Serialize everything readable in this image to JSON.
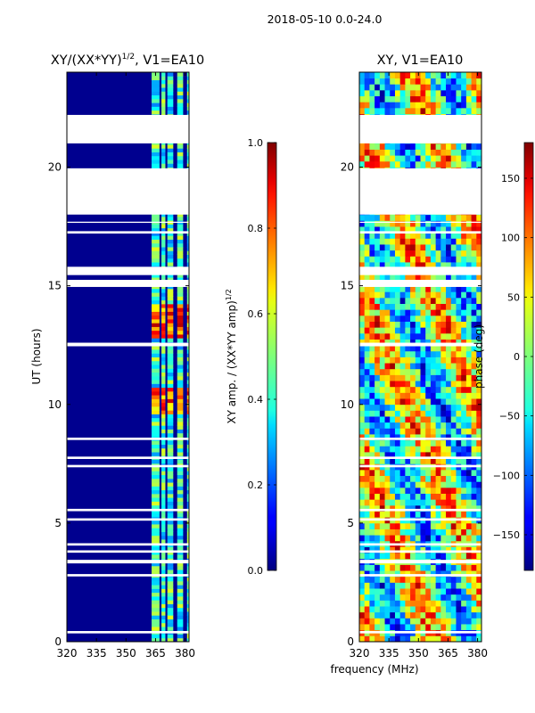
{
  "suptitle": "2018-05-10 0.0-24.0",
  "chart_data": [
    {
      "type": "heatmap",
      "title": "XY/(XX*YY)",
      "title_sup": "1/2",
      "title_suffix": ", V1=EA10",
      "xlabel": "",
      "ylabel": "UT (hours)",
      "xlim": [
        320,
        382
      ],
      "ylim": [
        0,
        24
      ],
      "xticks": [
        320,
        335,
        350,
        365,
        380
      ],
      "yticks": [
        0,
        5,
        10,
        15,
        20
      ],
      "colorbar": {
        "label": "XY amp. / (XX*YY amp)",
        "label_sup": "1/2",
        "min": 0.0,
        "max": 1.0,
        "ticks": [
          "0.0",
          "0.2",
          "0.4",
          "0.6",
          "0.8",
          "1.0"
        ],
        "tick_values": [
          0.0,
          0.2,
          0.4,
          0.6,
          0.8,
          1.0
        ]
      },
      "colormap": "jet",
      "description_values": {
        "background_band": [
          320,
          363
        ],
        "background_level": 0.05,
        "rfi_bands_mhz": [
          [
            363,
            367
          ],
          [
            368,
            370
          ],
          [
            371,
            374
          ],
          [
            376,
            379
          ],
          [
            381,
            382
          ]
        ],
        "high_amp_hours": [
          [
            12.8,
            14.2
          ],
          [
            9.6,
            10.6
          ]
        ]
      },
      "gap_hours": [
        [
          0.35,
          0.45
        ],
        [
          2.75,
          2.85
        ],
        [
          3.3,
          3.45
        ],
        [
          3.75,
          3.85
        ],
        [
          4.05,
          4.15
        ],
        [
          5.1,
          5.2
        ],
        [
          5.5,
          5.6
        ],
        [
          7.35,
          7.45
        ],
        [
          7.7,
          7.8
        ],
        [
          8.5,
          8.6
        ],
        [
          12.45,
          12.6
        ],
        [
          14.95,
          15.25
        ],
        [
          15.45,
          15.8
        ],
        [
          17.2,
          17.3
        ],
        [
          17.65,
          17.7
        ],
        [
          18.0,
          19.95
        ],
        [
          21.0,
          22.2
        ]
      ]
    },
    {
      "type": "heatmap",
      "title": "XY, V1=EA10",
      "xlabel": "frequency (MHz)",
      "ylabel": "",
      "xlim": [
        320,
        382
      ],
      "ylim": [
        0,
        24
      ],
      "xticks": [
        320,
        335,
        350,
        365,
        380
      ],
      "yticks": [
        0,
        5,
        10,
        15,
        20
      ],
      "colorbar": {
        "label": "phase (deg)",
        "min": -180,
        "max": 180,
        "ticks": [
          "−150",
          "−100",
          "−50",
          "0",
          "50",
          "100",
          "150"
        ],
        "tick_values": [
          -150,
          -100,
          -50,
          0,
          50,
          100,
          150
        ]
      },
      "colormap": "jet",
      "gap_hours": [
        [
          0.35,
          0.45
        ],
        [
          2.75,
          2.85
        ],
        [
          3.3,
          3.45
        ],
        [
          3.75,
          3.85
        ],
        [
          4.05,
          4.15
        ],
        [
          5.1,
          5.2
        ],
        [
          5.5,
          5.6
        ],
        [
          7.35,
          7.45
        ],
        [
          7.7,
          7.8
        ],
        [
          8.5,
          8.6
        ],
        [
          12.45,
          12.6
        ],
        [
          14.95,
          15.25
        ],
        [
          15.45,
          15.8
        ],
        [
          17.2,
          17.3
        ],
        [
          17.65,
          17.7
        ],
        [
          18.0,
          19.95
        ],
        [
          21.0,
          22.2
        ]
      ]
    }
  ]
}
